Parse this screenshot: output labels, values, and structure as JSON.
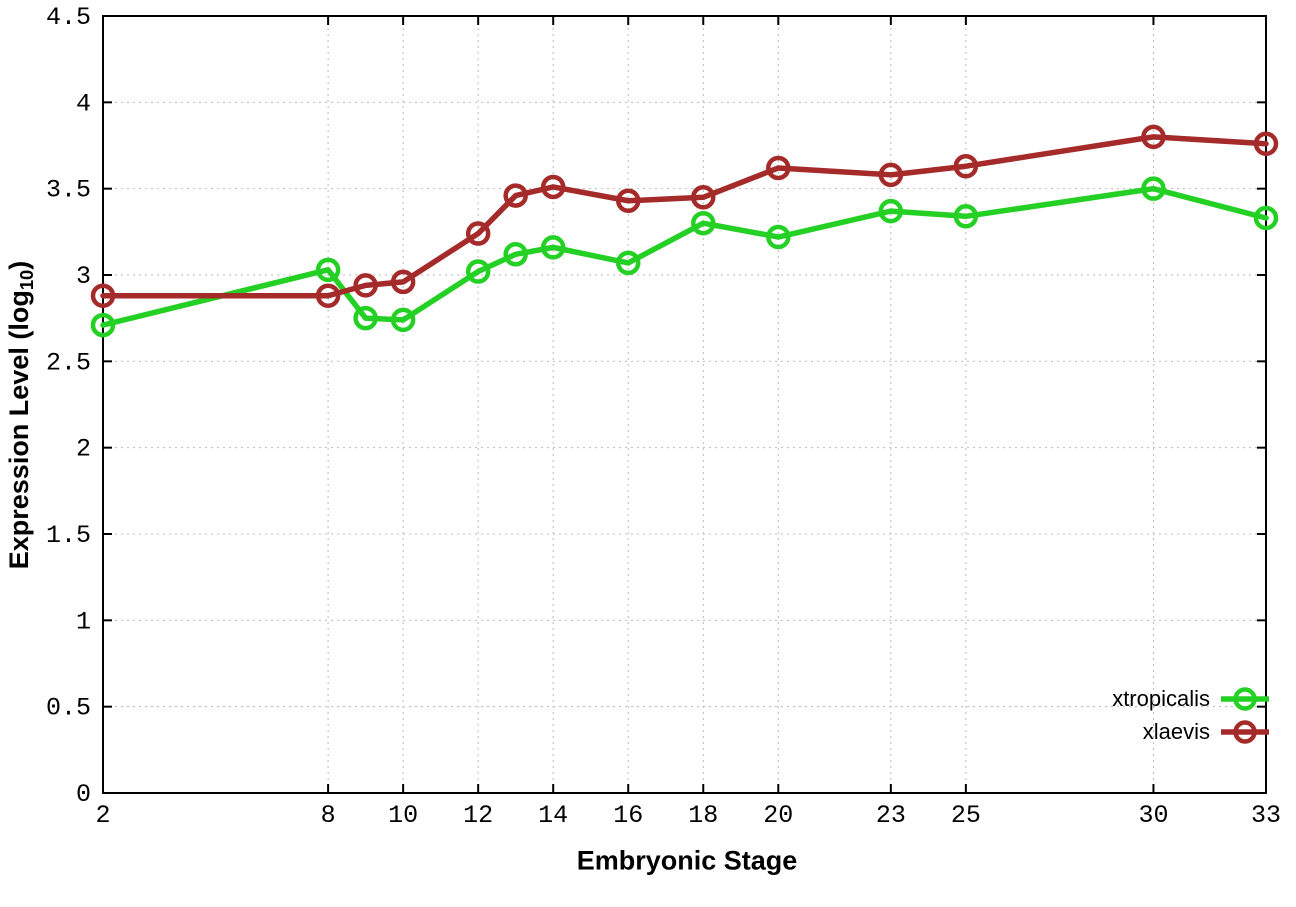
{
  "figure": {
    "background": "#ffffff",
    "border_color": "#000000",
    "grid_color": "#bababa"
  },
  "chart_data": {
    "type": "line",
    "title": "",
    "xlabel": "Embryonic Stage",
    "ylabel": "Expression Level (log10)",
    "ylabel_parts": {
      "main": "Expression Level (log",
      "sub": "10",
      "end": ")"
    },
    "xlim": [
      2,
      33
    ],
    "ylim": [
      0,
      4.5
    ],
    "xticks": [
      2,
      8,
      10,
      12,
      14,
      16,
      18,
      20,
      23,
      25,
      30,
      33
    ],
    "yticks": [
      0,
      0.5,
      1,
      1.5,
      2,
      2.5,
      3,
      3.5,
      4,
      4.5
    ],
    "grid": true,
    "grid_style": "dotted",
    "legend_position": "bottom-right",
    "marker": "open-circle",
    "x": [
      2,
      8,
      9,
      10,
      12,
      13,
      14,
      16,
      18,
      20,
      23,
      25,
      30,
      33
    ],
    "series": [
      {
        "name": "xtropicalis",
        "color": "#24d024",
        "values": [
          2.71,
          3.03,
          2.75,
          2.74,
          3.02,
          3.12,
          3.16,
          3.07,
          3.3,
          3.22,
          3.37,
          3.34,
          3.5,
          3.33
        ]
      },
      {
        "name": "xlaevis",
        "color": "#a52a2a",
        "values": [
          2.88,
          2.88,
          2.94,
          2.96,
          3.24,
          3.46,
          3.51,
          3.43,
          3.45,
          3.62,
          3.58,
          3.63,
          3.8,
          3.76
        ]
      }
    ]
  }
}
